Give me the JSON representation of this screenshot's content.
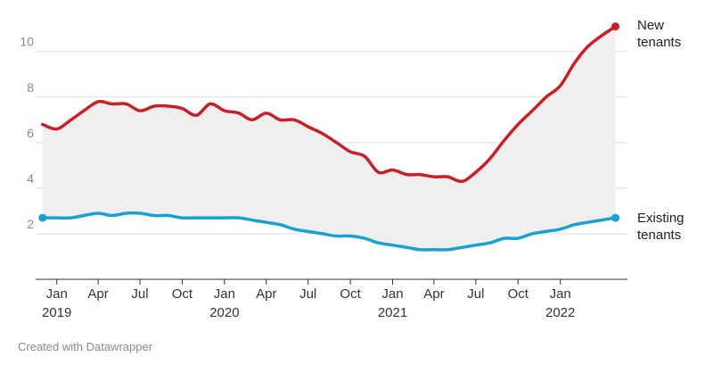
{
  "chart_data": {
    "type": "line",
    "ylim": [
      0,
      11.4
    ],
    "yticks": [
      2,
      4,
      6,
      8,
      10
    ],
    "x_range": [
      "2018-11-16",
      "2022-05-31"
    ],
    "grid": true,
    "colors": {
      "new": "#c8202a",
      "existing": "#1aa0d2",
      "band": "#efefef",
      "grid": "#dddddd"
    },
    "xticks": [
      {
        "date": "2019-01-01",
        "label": "Jan",
        "year": "2019"
      },
      {
        "date": "2019-04-01",
        "label": "Apr",
        "year": ""
      },
      {
        "date": "2019-07-01",
        "label": "Jul",
        "year": ""
      },
      {
        "date": "2019-10-01",
        "label": "Oct",
        "year": ""
      },
      {
        "date": "2020-01-01",
        "label": "Jan",
        "year": "2020"
      },
      {
        "date": "2020-04-01",
        "label": "Apr",
        "year": ""
      },
      {
        "date": "2020-07-01",
        "label": "Jul",
        "year": ""
      },
      {
        "date": "2020-10-01",
        "label": "Oct",
        "year": ""
      },
      {
        "date": "2021-01-01",
        "label": "Jan",
        "year": "2021"
      },
      {
        "date": "2021-04-01",
        "label": "Apr",
        "year": ""
      },
      {
        "date": "2021-07-01",
        "label": "Jul",
        "year": ""
      },
      {
        "date": "2021-10-01",
        "label": "Oct",
        "year": ""
      },
      {
        "date": "2022-01-01",
        "label": "Jan",
        "year": "2022"
      }
    ],
    "series": [
      {
        "name": "New tenants",
        "label_lines": [
          "New",
          "tenants"
        ],
        "x": [
          "2018-12",
          "2019-01",
          "2019-02",
          "2019-03",
          "2019-04",
          "2019-05",
          "2019-06",
          "2019-07",
          "2019-08",
          "2019-09",
          "2019-10",
          "2019-11",
          "2019-12",
          "2020-01",
          "2020-02",
          "2020-03",
          "2020-04",
          "2020-05",
          "2020-06",
          "2020-07",
          "2020-08",
          "2020-09",
          "2020-10",
          "2020-11",
          "2020-12",
          "2021-01",
          "2021-02",
          "2021-03",
          "2021-04",
          "2021-05",
          "2021-06",
          "2021-07",
          "2021-08",
          "2021-09",
          "2021-10",
          "2021-11",
          "2021-12",
          "2022-01",
          "2022-02",
          "2022-03",
          "2022-04",
          "2022-05"
        ],
        "values": [
          6.8,
          6.6,
          7.0,
          7.4,
          7.8,
          7.7,
          7.7,
          7.4,
          7.6,
          7.6,
          7.5,
          7.2,
          7.7,
          7.4,
          7.3,
          7.0,
          7.3,
          7.0,
          7.0,
          6.7,
          6.4,
          6.0,
          5.6,
          5.4,
          4.7,
          4.8,
          4.6,
          4.6,
          4.5,
          4.5,
          4.3,
          4.7,
          5.3,
          6.1,
          6.8,
          7.4,
          8.0,
          8.5,
          9.5,
          10.2,
          10.7,
          11.1
        ]
      },
      {
        "name": "Existing tenants",
        "label_lines": [
          "Existing",
          "tenants"
        ],
        "x": [
          "2018-12",
          "2019-01",
          "2019-02",
          "2019-03",
          "2019-04",
          "2019-05",
          "2019-06",
          "2019-07",
          "2019-08",
          "2019-09",
          "2019-10",
          "2019-11",
          "2019-12",
          "2020-01",
          "2020-02",
          "2020-03",
          "2020-04",
          "2020-05",
          "2020-06",
          "2020-07",
          "2020-08",
          "2020-09",
          "2020-10",
          "2020-11",
          "2020-12",
          "2021-01",
          "2021-02",
          "2021-03",
          "2021-04",
          "2021-05",
          "2021-06",
          "2021-07",
          "2021-08",
          "2021-09",
          "2021-10",
          "2021-11",
          "2021-12",
          "2022-01",
          "2022-02",
          "2022-03",
          "2022-04",
          "2022-05"
        ],
        "values": [
          2.7,
          2.7,
          2.7,
          2.8,
          2.9,
          2.8,
          2.9,
          2.9,
          2.8,
          2.8,
          2.7,
          2.7,
          2.7,
          2.7,
          2.7,
          2.6,
          2.5,
          2.4,
          2.2,
          2.1,
          2.0,
          1.9,
          1.9,
          1.8,
          1.6,
          1.5,
          1.4,
          1.3,
          1.3,
          1.3,
          1.4,
          1.5,
          1.6,
          1.8,
          1.8,
          2.0,
          2.1,
          2.2,
          2.4,
          2.5,
          2.6,
          2.7
        ]
      }
    ]
  },
  "footer": {
    "credit": "Created with Datawrapper"
  }
}
